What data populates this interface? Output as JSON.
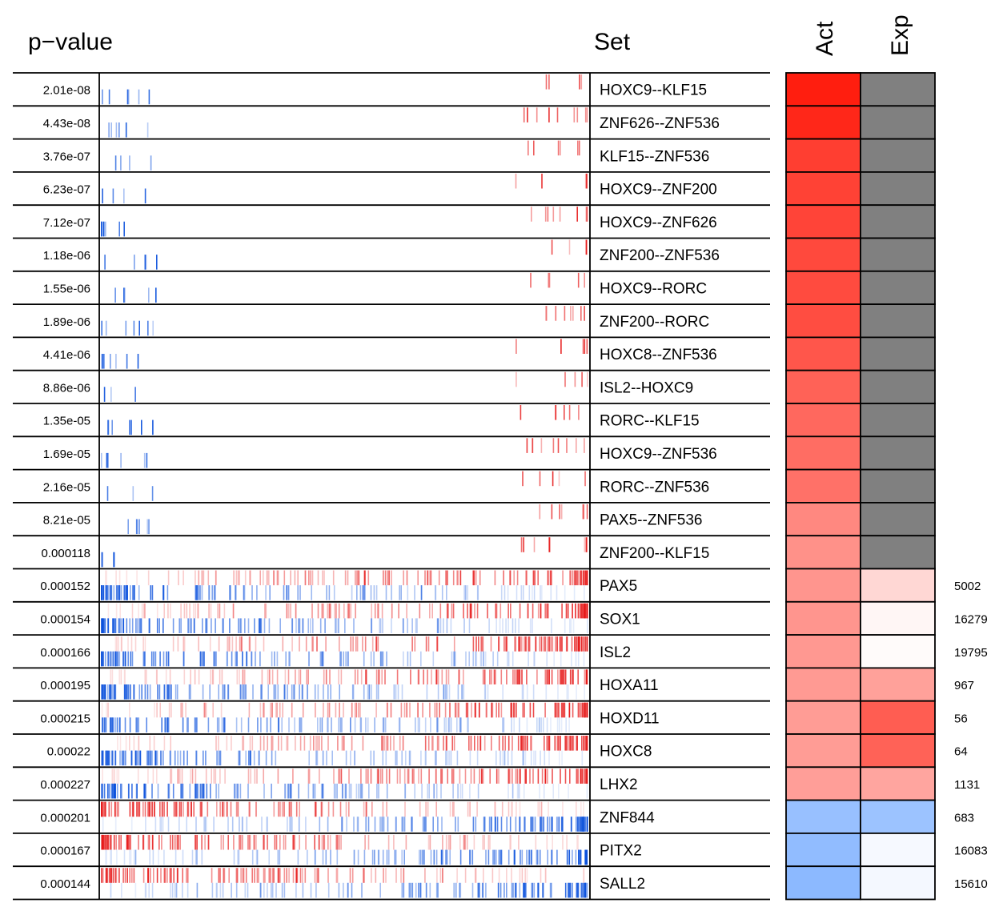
{
  "chart_data": {
    "type": "heatmap",
    "title": "",
    "headers": {
      "pvalue": "p−value",
      "set": "Set",
      "act": "Act",
      "exp": "Exp"
    },
    "colors": {
      "up": "#ff0000",
      "down": "#0055dd",
      "na": "#808080",
      "grid": "#000000"
    },
    "rows": [
      {
        "pvalue": "2.01e-08",
        "set": "HOXC9--KLF15",
        "act": 1.0,
        "exp": null,
        "count": ""
      },
      {
        "pvalue": "4.43e-08",
        "set": "ZNF626--ZNF536",
        "act": 0.96,
        "exp": null,
        "count": ""
      },
      {
        "pvalue": "3.76e-07",
        "set": "KLF15--ZNF536",
        "act": 0.86,
        "exp": null,
        "count": ""
      },
      {
        "pvalue": "6.23e-07",
        "set": "HOXC9--ZNF200",
        "act": 0.84,
        "exp": null,
        "count": ""
      },
      {
        "pvalue": "7.12e-07",
        "set": "HOXC9--ZNF626",
        "act": 0.83,
        "exp": null,
        "count": ""
      },
      {
        "pvalue": "1.18e-06",
        "set": "ZNF200--ZNF536",
        "act": 0.81,
        "exp": null,
        "count": ""
      },
      {
        "pvalue": "1.55e-06",
        "set": "HOXC9--RORC",
        "act": 0.8,
        "exp": null,
        "count": ""
      },
      {
        "pvalue": "1.89e-06",
        "set": "ZNF200--RORC",
        "act": 0.79,
        "exp": null,
        "count": ""
      },
      {
        "pvalue": "4.41e-06",
        "set": "HOXC8--ZNF536",
        "act": 0.75,
        "exp": null,
        "count": ""
      },
      {
        "pvalue": "8.86e-06",
        "set": "ISL2--HOXC9",
        "act": 0.7,
        "exp": null,
        "count": ""
      },
      {
        "pvalue": "1.35e-05",
        "set": "RORC--KLF15",
        "act": 0.67,
        "exp": null,
        "count": ""
      },
      {
        "pvalue": "1.69e-05",
        "set": "HOXC9--ZNF536",
        "act": 0.65,
        "exp": null,
        "count": ""
      },
      {
        "pvalue": "2.16e-05",
        "set": "RORC--ZNF536",
        "act": 0.63,
        "exp": null,
        "count": ""
      },
      {
        "pvalue": "8.21e-05",
        "set": "PAX5--ZNF536",
        "act": 0.53,
        "exp": null,
        "count": ""
      },
      {
        "pvalue": "0.000118",
        "set": "ZNF200--KLF15",
        "act": 0.49,
        "exp": null,
        "count": ""
      },
      {
        "pvalue": "0.000152",
        "set": "PAX5",
        "act": 0.47,
        "exp": 0.18,
        "count": "5002"
      },
      {
        "pvalue": "0.000154",
        "set": "SOX1",
        "act": 0.47,
        "exp": 0.04,
        "count": "16279"
      },
      {
        "pvalue": "0.000166",
        "set": "ISL2",
        "act": 0.46,
        "exp": 0.02,
        "count": "19795"
      },
      {
        "pvalue": "0.000195",
        "set": "HOXA11",
        "act": 0.45,
        "exp": 0.42,
        "count": "967"
      },
      {
        "pvalue": "0.000215",
        "set": "HOXD11",
        "act": 0.44,
        "exp": 0.72,
        "count": "56"
      },
      {
        "pvalue": "0.00022",
        "set": "HOXC8",
        "act": 0.44,
        "exp": 0.7,
        "count": "64"
      },
      {
        "pvalue": "0.000227",
        "set": "LHX2",
        "act": 0.43,
        "exp": 0.4,
        "count": "1131"
      },
      {
        "pvalue": "0.000201",
        "set": "ZNF844",
        "act": -0.45,
        "exp": -0.43,
        "count": "683"
      },
      {
        "pvalue": "0.000167",
        "set": "PITX2",
        "act": -0.48,
        "exp": -0.04,
        "count": "16083"
      },
      {
        "pvalue": "0.000144",
        "set": "SALL2",
        "act": -0.5,
        "exp": -0.05,
        "count": "15610"
      }
    ]
  }
}
